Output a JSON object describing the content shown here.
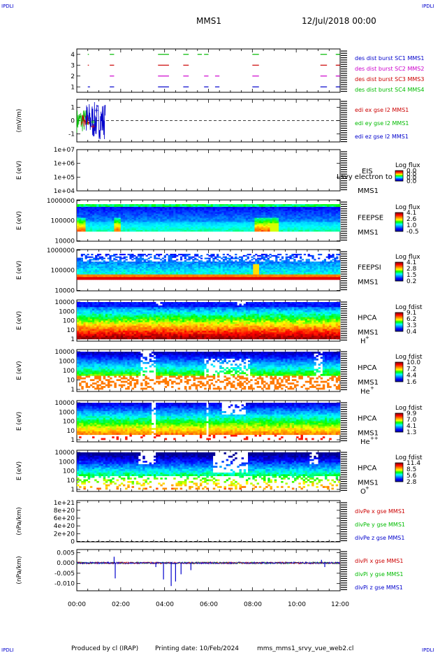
{
  "corner_label": "IPDLI",
  "header": {
    "spacecraft": "MMS1",
    "date": "12/Jul/2018 00:00"
  },
  "footer": {
    "producer": "Produced by cl (IRAP)",
    "printing": "Printing date: 10/Feb/2024",
    "script": "mms_mms1_srvy_vue_web2.cl"
  },
  "time_axis": {
    "ticks": [
      "00:00",
      "02:00",
      "04:00",
      "06:00",
      "08:00",
      "10:00",
      "12:00"
    ]
  },
  "colors": {
    "red": "#cc0000",
    "green": "#00bb00",
    "blue": "#0000cc",
    "magenta": "#cc00cc",
    "black": "#000000"
  },
  "chart_data": [
    {
      "type": "line",
      "panel": "burst",
      "yticks": [
        "1",
        "2",
        "3",
        "4"
      ],
      "ylim": [
        0.5,
        4.5
      ],
      "series": [
        {
          "name": "des dist burst SC1 MMS1",
          "y": 1,
          "color": "#0000cc",
          "segments": [
            [
              0.5,
              0.6
            ],
            [
              1.5,
              1.7
            ],
            [
              3.7,
              4.2
            ],
            [
              4.85,
              5.1
            ],
            [
              5.8,
              6.0
            ],
            [
              6.3,
              6.5
            ],
            [
              8.0,
              8.3
            ],
            [
              11.1,
              11.4
            ],
            [
              11.8,
              12.0
            ]
          ]
        },
        {
          "name": "des dist burst SC2 MMS2",
          "y": 2,
          "color": "#cc00cc",
          "segments": [
            [
              1.5,
              1.7
            ],
            [
              3.7,
              4.2
            ],
            [
              4.85,
              5.1
            ],
            [
              5.8,
              6.0
            ],
            [
              6.3,
              6.5
            ],
            [
              8.0,
              8.3
            ],
            [
              11.1,
              11.4
            ],
            [
              11.8,
              12.0
            ]
          ]
        },
        {
          "name": "des dist burst SC3 MMS3",
          "y": 3,
          "color": "#cc0000",
          "segments": [
            [
              0.5,
              0.55
            ],
            [
              1.5,
              1.7
            ],
            [
              3.7,
              4.2
            ],
            [
              4.85,
              5.1
            ],
            [
              8.0,
              8.3
            ],
            [
              11.1,
              11.4
            ],
            [
              11.8,
              12.0
            ]
          ]
        },
        {
          "name": "des dist burst SC4 MMS4",
          "y": 4,
          "color": "#00bb00",
          "segments": [
            [
              0.5,
              0.55
            ],
            [
              1.5,
              1.7
            ],
            [
              3.7,
              4.2
            ],
            [
              4.85,
              5.1
            ],
            [
              5.5,
              5.7
            ],
            [
              5.8,
              6.0
            ],
            [
              8.0,
              8.3
            ],
            [
              11.1,
              11.4
            ],
            [
              11.8,
              12.0
            ]
          ]
        }
      ]
    },
    {
      "type": "line",
      "panel": "edi",
      "ylabel": "(mV/m)",
      "yticks": [
        "-1",
        "0",
        "1"
      ],
      "ylim": [
        -1.6,
        1.6
      ],
      "zero_line": true,
      "series": [
        {
          "name": "edi ex gse l2 MMS1",
          "color": "#cc0000"
        },
        {
          "name": "edi ey gse l2 MMS1",
          "color": "#00bb00"
        },
        {
          "name": "edi ez gse l2 MMS1",
          "color": "#0000cc"
        }
      ],
      "activity_window": [
        0.0,
        1.3
      ]
    },
    {
      "type": "heatmap",
      "panel": "eis",
      "ylabel": "E (eV)",
      "yticks": [
        "1e+04",
        "1e+05",
        "1e+06",
        "1e+07"
      ],
      "instrument": "EIS",
      "overlay_label": "Lsvy electron to",
      "sc": "MMS1",
      "colorbar": {
        "title": "Log flux",
        "ticks": [
          "0.0",
          "0.0",
          "0.0",
          "0.0"
        ]
      },
      "empty": true
    },
    {
      "type": "heatmap",
      "panel": "feepse",
      "ylabel": "E (eV)",
      "yticks": [
        "10000",
        "100000",
        "1000000"
      ],
      "instrument": "FEEPSE",
      "sc": "MMS1",
      "colorbar": {
        "title": "Log flux",
        "ticks": [
          "4.1",
          "2.6",
          "1.0",
          "-0.5"
        ]
      }
    },
    {
      "type": "heatmap",
      "panel": "feepsi",
      "ylabel": "E (eV)",
      "yticks": [
        "10000",
        "100000",
        "1000000"
      ],
      "instrument": "FEEPSI",
      "sc": "MMS1",
      "colorbar": {
        "title": "Log flux",
        "ticks": [
          "4.1",
          "2.8",
          "1.5",
          "0.2"
        ]
      }
    },
    {
      "type": "heatmap",
      "panel": "hpca_h",
      "ylabel": "E (eV)",
      "yticks": [
        "1",
        "10",
        "100",
        "1000",
        "10000"
      ],
      "instrument": "HPCA",
      "sc": "MMS1",
      "species": "H",
      "species_sup": "+",
      "colorbar": {
        "title": "Log fdist",
        "ticks": [
          "9.1",
          "6.2",
          "3.3",
          "0.4"
        ]
      }
    },
    {
      "type": "heatmap",
      "panel": "hpca_he",
      "ylabel": "E (eV)",
      "yticks": [
        "1",
        "10",
        "100",
        "1000",
        "10000"
      ],
      "instrument": "HPCA",
      "sc": "MMS1",
      "species": "He",
      "species_sup": "+",
      "colorbar": {
        "title": "Log fdist",
        "ticks": [
          "10.0",
          "7.2",
          "4.4",
          "1.6"
        ]
      }
    },
    {
      "type": "heatmap",
      "panel": "hpca_he2",
      "ylabel": "E (eV)",
      "yticks": [
        "1",
        "10",
        "100",
        "1000",
        "10000"
      ],
      "instrument": "HPCA",
      "sc": "MMS1",
      "species": "He",
      "species_sup": "++",
      "colorbar": {
        "title": "Log fdist",
        "ticks": [
          "9.9",
          "7.0",
          "4.1",
          "1.3"
        ]
      }
    },
    {
      "type": "heatmap",
      "panel": "hpca_o",
      "ylabel": "E (eV)",
      "yticks": [
        "1",
        "10",
        "100",
        "1000",
        "10000"
      ],
      "instrument": "HPCA",
      "sc": "MMS1",
      "species": "O",
      "species_sup": "+",
      "colorbar": {
        "title": "Log fdist",
        "ticks": [
          "11.4",
          "8.5",
          "5.6",
          "2.8"
        ]
      }
    },
    {
      "type": "line",
      "panel": "divpe",
      "ylabel": "(nPa/km)",
      "yticks": [
        "0",
        "2e+20",
        "4e+20",
        "6e+20",
        "8e+20",
        "1e+21"
      ],
      "ylim": [
        -1e+19,
        1.05e+21
      ],
      "zero_line": true,
      "series": [
        {
          "name": "divPe x gse MMS1",
          "color": "#cc0000"
        },
        {
          "name": "divPe y gse MMS1",
          "color": "#00bb00"
        },
        {
          "name": "divPe z gse MMS1",
          "color": "#0000cc"
        }
      ]
    },
    {
      "type": "line",
      "panel": "divpi",
      "ylabel": "(nPa/km)",
      "yticks": [
        "-0.010",
        "-0.005",
        "0.000",
        "0.005"
      ],
      "ylim": [
        -0.0135,
        0.0065
      ],
      "series": [
        {
          "name": "divPi x gse MMS1",
          "color": "#cc0000"
        },
        {
          "name": "divPi y gse MMS1",
          "color": "#00bb00"
        },
        {
          "name": "divPi z gse MMS1",
          "color": "#0000cc"
        }
      ],
      "spikes": [
        [
          1.75,
          -0.0075
        ],
        [
          1.7,
          0.003
        ],
        [
          3.95,
          -0.008
        ],
        [
          4.3,
          -0.0112
        ],
        [
          4.5,
          -0.009
        ],
        [
          4.75,
          -0.0055
        ],
        [
          5.2,
          -0.0035
        ],
        [
          3.6,
          -0.002
        ],
        [
          11.15,
          0.0015
        ],
        [
          11.3,
          -0.002
        ]
      ]
    }
  ]
}
